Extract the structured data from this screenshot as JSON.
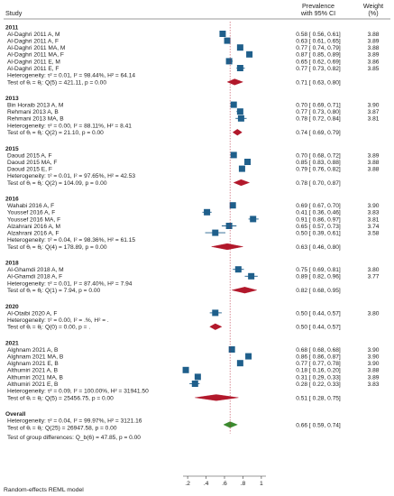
{
  "chart_data": {
    "type": "forest",
    "header": {
      "study": "Study",
      "effect": "Prevalence",
      "ci": "with 95% CI",
      "weight": "Weight",
      "weight_unit": "(%)"
    },
    "x_ticks": [
      ".2",
      ".4",
      ".6",
      ".8",
      "1"
    ],
    "xlim": [
      0.15,
      1.05
    ],
    "colors": {
      "study_marker": "#1f5f8b",
      "subgroup_diamond": "#b2182b",
      "overall_diamond": "#3a8a2e",
      "ref_line": "#b2182b"
    },
    "groups": [
      {
        "label": "2011",
        "studies": [
          {
            "name": "Al-Daghri 2011 A, M",
            "est": 0.58,
            "lo": 0.56,
            "hi": 0.61,
            "text": "0.58 [ 0.56, 0.61]",
            "weight": "3.88"
          },
          {
            "name": "Al-Daghri 2011 A, F",
            "est": 0.63,
            "lo": 0.61,
            "hi": 0.65,
            "text": "0.63 [ 0.61, 0.65]",
            "weight": "3.89"
          },
          {
            "name": "Al-Daghri 2011 MA, M",
            "est": 0.77,
            "lo": 0.74,
            "hi": 0.79,
            "text": "0.77 [ 0.74, 0.79]",
            "weight": "3.88"
          },
          {
            "name": "Al-Daghri 2011 MA, F",
            "est": 0.87,
            "lo": 0.85,
            "hi": 0.89,
            "text": "0.87 [ 0.85, 0.89]",
            "weight": "3.89"
          },
          {
            "name": "Al-Daghri 2011 E, M",
            "est": 0.65,
            "lo": 0.62,
            "hi": 0.69,
            "text": "0.65 [ 0.62, 0.69]",
            "weight": "3.86"
          },
          {
            "name": "Al-Daghri 2011 E, F",
            "est": 0.77,
            "lo": 0.73,
            "hi": 0.82,
            "text": "0.77 [ 0.73, 0.82]",
            "weight": "3.85"
          }
        ],
        "heterogeneity": "Heterogeneity: τ² = 0.01, I² = 98.44%, H² = 64.14",
        "test": "Test of θᵢ = θⱼ: Q(5) = 421.11, p = 0.00",
        "pooled": {
          "est": 0.71,
          "lo": 0.63,
          "hi": 0.8,
          "text": "0.71 [ 0.63, 0.80]"
        }
      },
      {
        "label": "2013",
        "studies": [
          {
            "name": "Bin Horaib 2013 A, M",
            "est": 0.7,
            "lo": 0.69,
            "hi": 0.71,
            "text": "0.70 [ 0.69, 0.71]",
            "weight": "3.90"
          },
          {
            "name": "Rehmani 2013 A, B",
            "est": 0.77,
            "lo": 0.73,
            "hi": 0.8,
            "text": "0.77 [ 0.73, 0.80]",
            "weight": "3.87"
          },
          {
            "name": "Rehmani 2013 MA, B",
            "est": 0.78,
            "lo": 0.72,
            "hi": 0.84,
            "text": "0.78 [ 0.72, 0.84]",
            "weight": "3.81"
          }
        ],
        "heterogeneity": "Heterogeneity: τ² = 0.00, I² = 88.11%, H² = 8.41",
        "test": "Test of θᵢ = θⱼ: Q(2) = 21.10, p = 0.00",
        "pooled": {
          "est": 0.74,
          "lo": 0.69,
          "hi": 0.79,
          "text": "0.74 [ 0.69, 0.79]"
        }
      },
      {
        "label": "2015",
        "studies": [
          {
            "name": "Daoud 2015 A, F",
            "est": 0.7,
            "lo": 0.68,
            "hi": 0.72,
            "text": "0.70 [ 0.68, 0.72]",
            "weight": "3.89"
          },
          {
            "name": "Daoud 2015 MA, F",
            "est": 0.85,
            "lo": 0.83,
            "hi": 0.88,
            "text": "0.85 [ 0.83, 0.88]",
            "weight": "3.88"
          },
          {
            "name": "Daoud 2015 E, F",
            "est": 0.79,
            "lo": 0.76,
            "hi": 0.82,
            "text": "0.79 [ 0.76, 0.82]",
            "weight": "3.88"
          }
        ],
        "heterogeneity": "Heterogeneity: τ² = 0.01, I² = 97.65%, H² = 42.53",
        "test": "Test of θᵢ = θⱼ: Q(2) = 104.09, p = 0.00",
        "pooled": {
          "est": 0.78,
          "lo": 0.7,
          "hi": 0.87,
          "text": "0.78 [ 0.70, 0.87]"
        }
      },
      {
        "label": "2016",
        "studies": [
          {
            "name": "Wahabi 2016 A, F",
            "est": 0.69,
            "lo": 0.67,
            "hi": 0.7,
            "text": "0.69 [ 0.67, 0.70]",
            "weight": "3.90"
          },
          {
            "name": "Youssef 2016 A, F",
            "est": 0.41,
            "lo": 0.36,
            "hi": 0.46,
            "text": "0.41 [ 0.36, 0.46]",
            "weight": "3.83"
          },
          {
            "name": "Youssef 2016 MA, F",
            "est": 0.91,
            "lo": 0.86,
            "hi": 0.97,
            "text": "0.91 [ 0.86, 0.97]",
            "weight": "3.81"
          },
          {
            "name": "Alzahrani 2016 A, M",
            "est": 0.65,
            "lo": 0.57,
            "hi": 0.73,
            "text": "0.65 [ 0.57, 0.73]",
            "weight": "3.74"
          },
          {
            "name": "Alzahrani 2016 A, F",
            "est": 0.5,
            "lo": 0.39,
            "hi": 0.61,
            "text": "0.50 [ 0.39, 0.61]",
            "weight": "3.58"
          }
        ],
        "heterogeneity": "Heterogeneity: τ² = 0.04, I² = 98.36%, H² = 61.15",
        "test": "Test of θᵢ = θⱼ: Q(4) = 178.89, p = 0.00",
        "pooled": {
          "est": 0.63,
          "lo": 0.46,
          "hi": 0.8,
          "text": "0.63 [ 0.46, 0.80]"
        }
      },
      {
        "label": "2018",
        "studies": [
          {
            "name": "Al-Ghamdi 2018 A, M",
            "est": 0.75,
            "lo": 0.69,
            "hi": 0.81,
            "text": "0.75 [ 0.69, 0.81]",
            "weight": "3.80"
          },
          {
            "name": "Al-Ghamdi 2018 A, F",
            "est": 0.89,
            "lo": 0.82,
            "hi": 0.96,
            "text": "0.89 [ 0.82, 0.96]",
            "weight": "3.77"
          }
        ],
        "heterogeneity": "Heterogeneity: τ² = 0.01, I² = 87.40%, H² = 7.94",
        "test": "Test of θᵢ = θⱼ: Q(1) = 7.94, p = 0.00",
        "pooled": {
          "est": 0.82,
          "lo": 0.68,
          "hi": 0.95,
          "text": "0.82 [ 0.68, 0.95]"
        }
      },
      {
        "label": "2020",
        "studies": [
          {
            "name": "Al-Otaibi 2020 A, F",
            "est": 0.5,
            "lo": 0.44,
            "hi": 0.57,
            "text": "0.50 [ 0.44, 0.57]",
            "weight": "3.80"
          }
        ],
        "heterogeneity": "Heterogeneity: τ² = 0.00, I² = .%, H² = .",
        "test": "Test of θᵢ = θⱼ: Q(0) = 0.00, p = .",
        "pooled": {
          "est": 0.5,
          "lo": 0.44,
          "hi": 0.57,
          "text": "0.50 [ 0.44, 0.57]"
        }
      },
      {
        "label": "2021",
        "studies": [
          {
            "name": "Alghnam 2021 A, B",
            "est": 0.68,
            "lo": 0.68,
            "hi": 0.68,
            "text": "0.68 [ 0.68, 0.68]",
            "weight": "3.90"
          },
          {
            "name": "Alghnam 2021 MA, B",
            "est": 0.86,
            "lo": 0.86,
            "hi": 0.87,
            "text": "0.86 [ 0.86, 0.87]",
            "weight": "3.90"
          },
          {
            "name": "Alghnam 2021 E, B",
            "est": 0.77,
            "lo": 0.77,
            "hi": 0.78,
            "text": "0.77 [ 0.77, 0.78]",
            "weight": "3.90"
          },
          {
            "name": "Althumiri 2021 A, B",
            "est": 0.18,
            "lo": 0.16,
            "hi": 0.2,
            "text": "0.18 [ 0.16, 0.20]",
            "weight": "3.88"
          },
          {
            "name": "Althumiri 2021 MA, B",
            "est": 0.31,
            "lo": 0.29,
            "hi": 0.33,
            "text": "0.31 [ 0.29, 0.33]",
            "weight": "3.89"
          },
          {
            "name": "Althumiri 2021 E, B",
            "est": 0.28,
            "lo": 0.22,
            "hi": 0.33,
            "text": "0.28 [ 0.22, 0.33]",
            "weight": "3.83"
          }
        ],
        "heterogeneity": "Heterogeneity: τ² = 0.09, I² = 100.00%, H² = 31941.50",
        "test": "Test of θᵢ = θⱼ: Q(5) = 25456.75, p = 0.00",
        "pooled": {
          "est": 0.51,
          "lo": 0.28,
          "hi": 0.75,
          "text": "0.51 [ 0.28, 0.75]"
        }
      }
    ],
    "overall": {
      "label": "Overall",
      "est": 0.66,
      "lo": 0.59,
      "hi": 0.74,
      "text": "0.66 [ 0.59, 0.74]",
      "heterogeneity": "Heterogeneity: τ² = 0.04, I² = 99.97%, H² = 3121.16",
      "test": "Test of θᵢ = θⱼ: Q(25) = 26947.58, p = 0.00",
      "group_test": "Test of group differences: Q_b(6) = 47.85, p = 0.00"
    },
    "footnote": "Random-effects REML model"
  }
}
